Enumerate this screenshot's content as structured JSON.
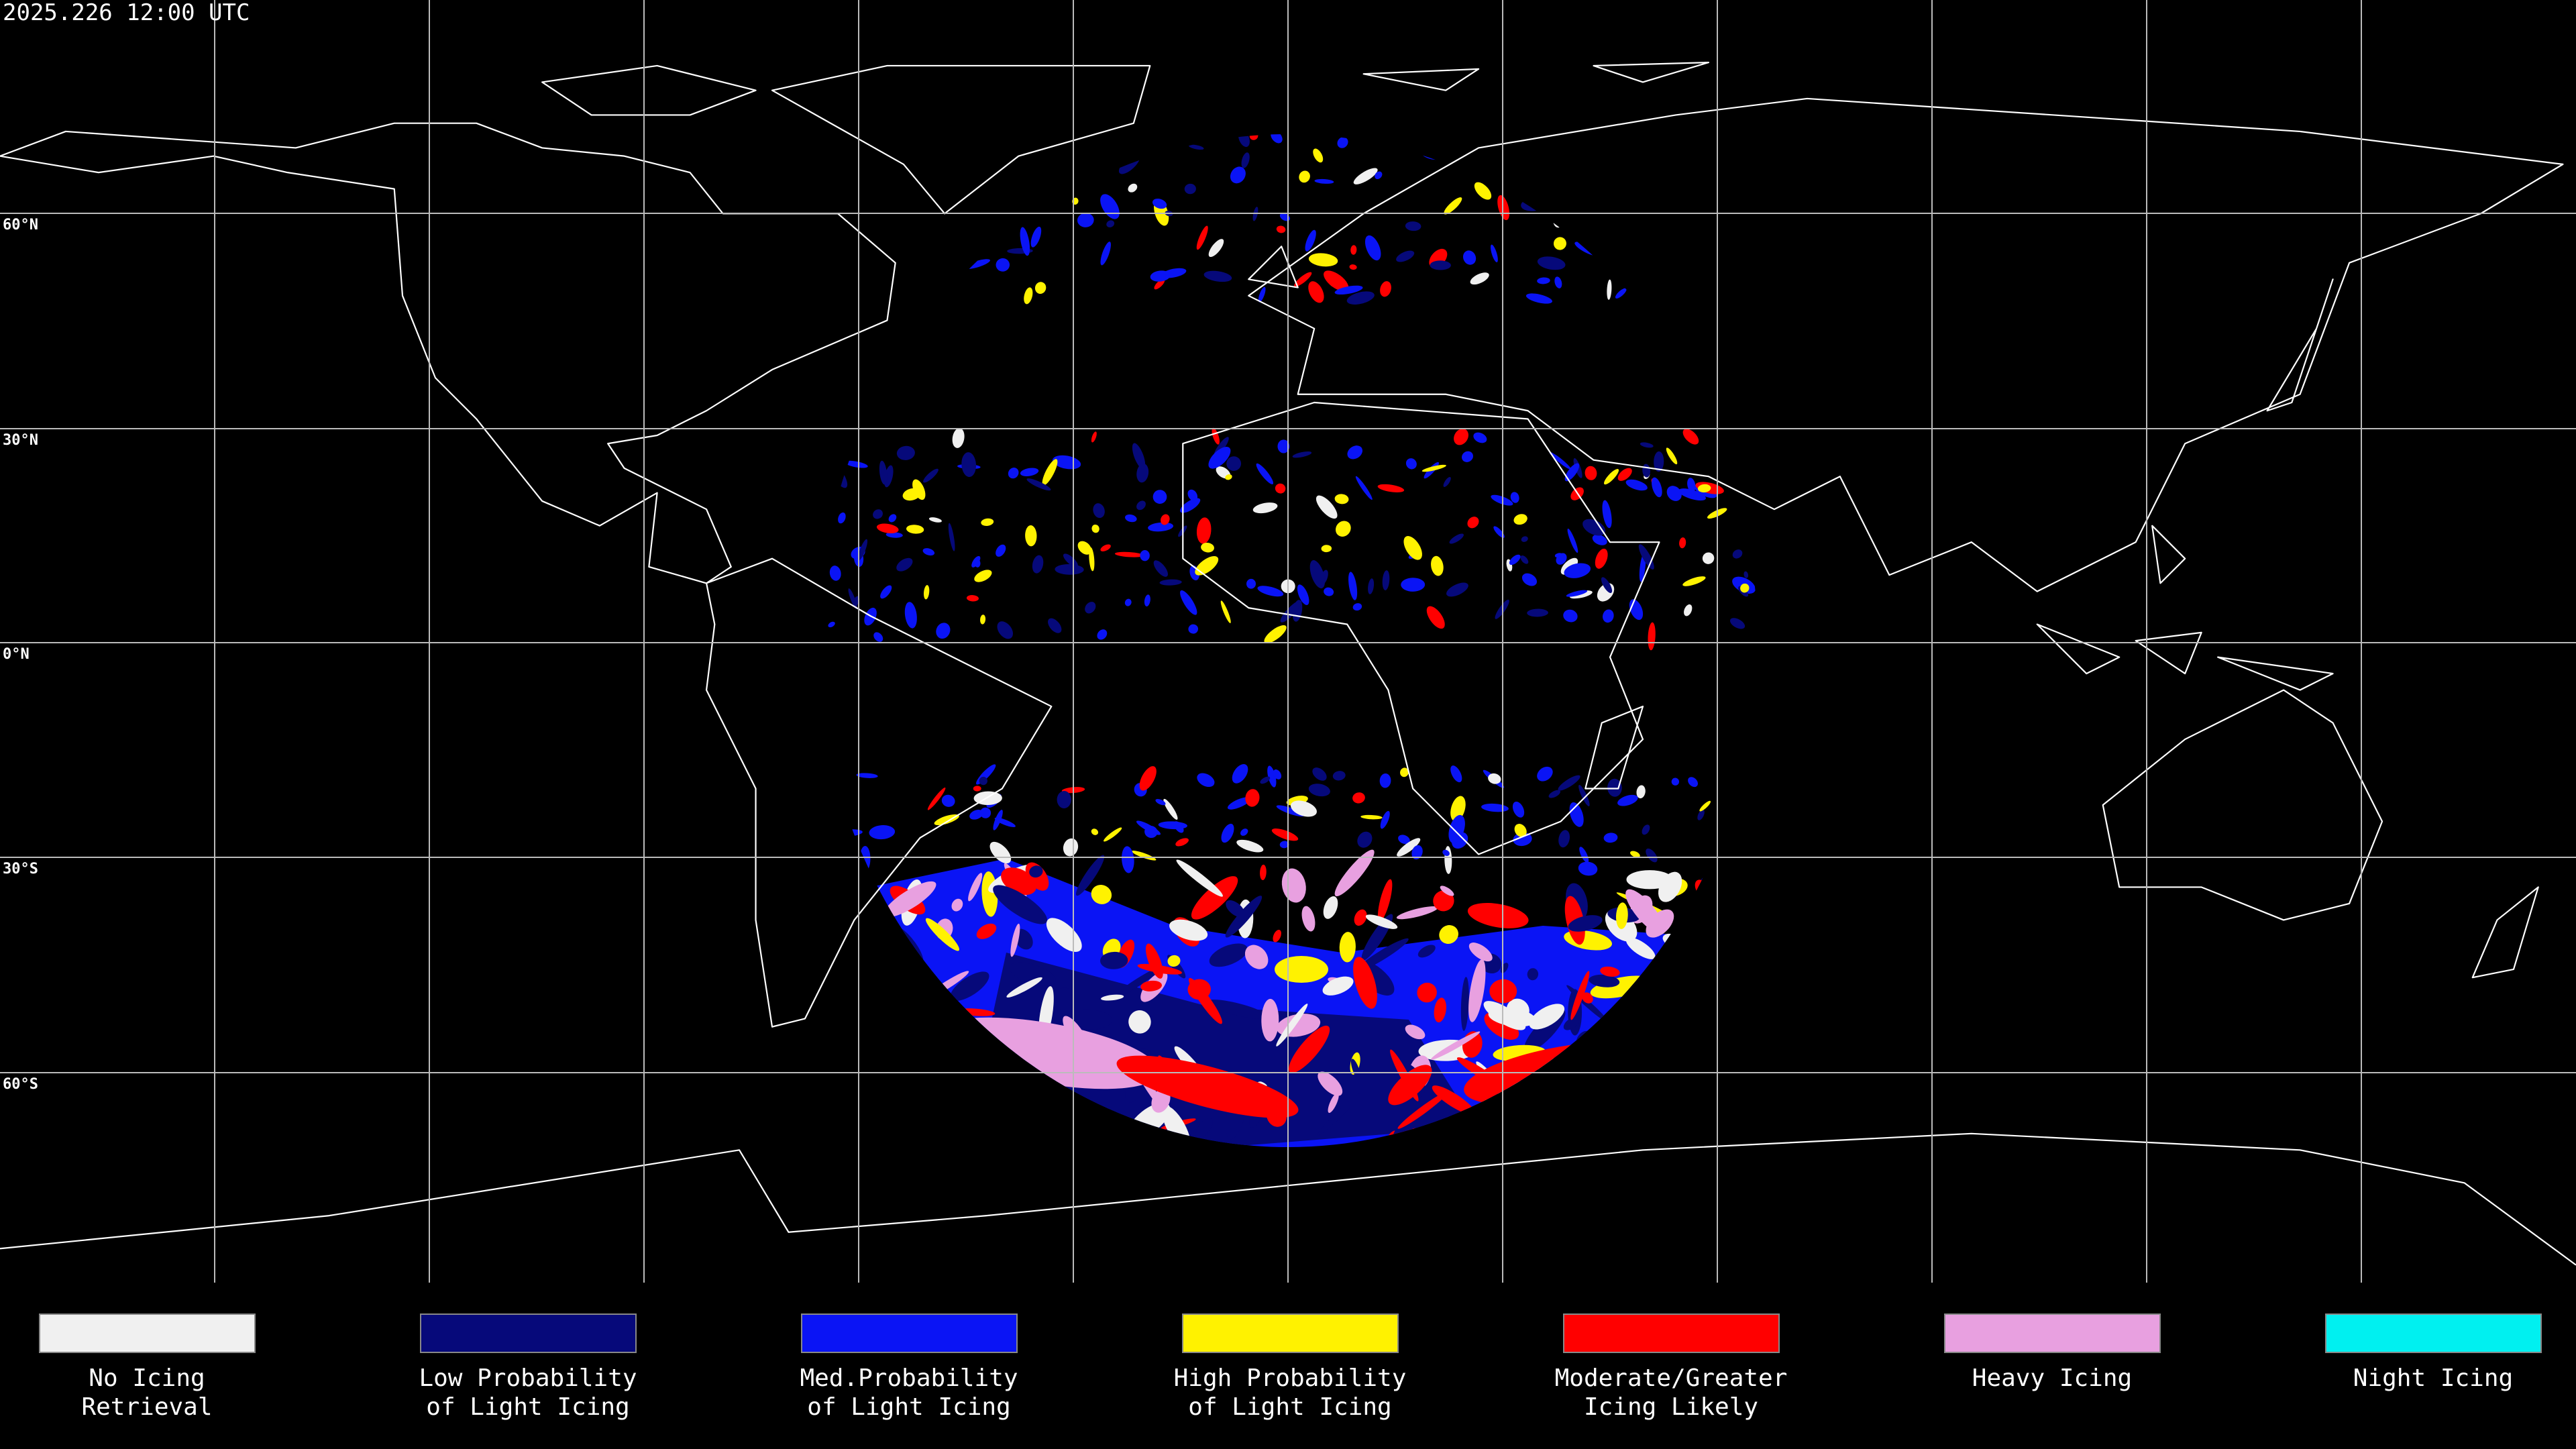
{
  "title": "2025.226 12:00 UTC",
  "latitudes": [
    "60°N",
    "30°N",
    "0°N",
    "30°S",
    "60°S"
  ],
  "legend": [
    {
      "lines": [
        "No Icing",
        "Retrieval"
      ],
      "color": "#f0f0f0"
    },
    {
      "lines": [
        "Low Probability",
        "of Light Icing"
      ],
      "color": "#06097a"
    },
    {
      "lines": [
        "Med.Probability",
        "of Light Icing"
      ],
      "color": "#0a14f5"
    },
    {
      "lines": [
        "High Probability",
        "of Light Icing"
      ],
      "color": "#fff200"
    },
    {
      "lines": [
        "Moderate/Greater",
        "Icing Likely"
      ],
      "color": "#ff0000"
    },
    {
      "lines": [
        "Heavy Icing"
      ],
      "color": "#e8a0e0"
    },
    {
      "lines": [
        "Night Icing"
      ],
      "color": "#00f0f0"
    }
  ]
}
